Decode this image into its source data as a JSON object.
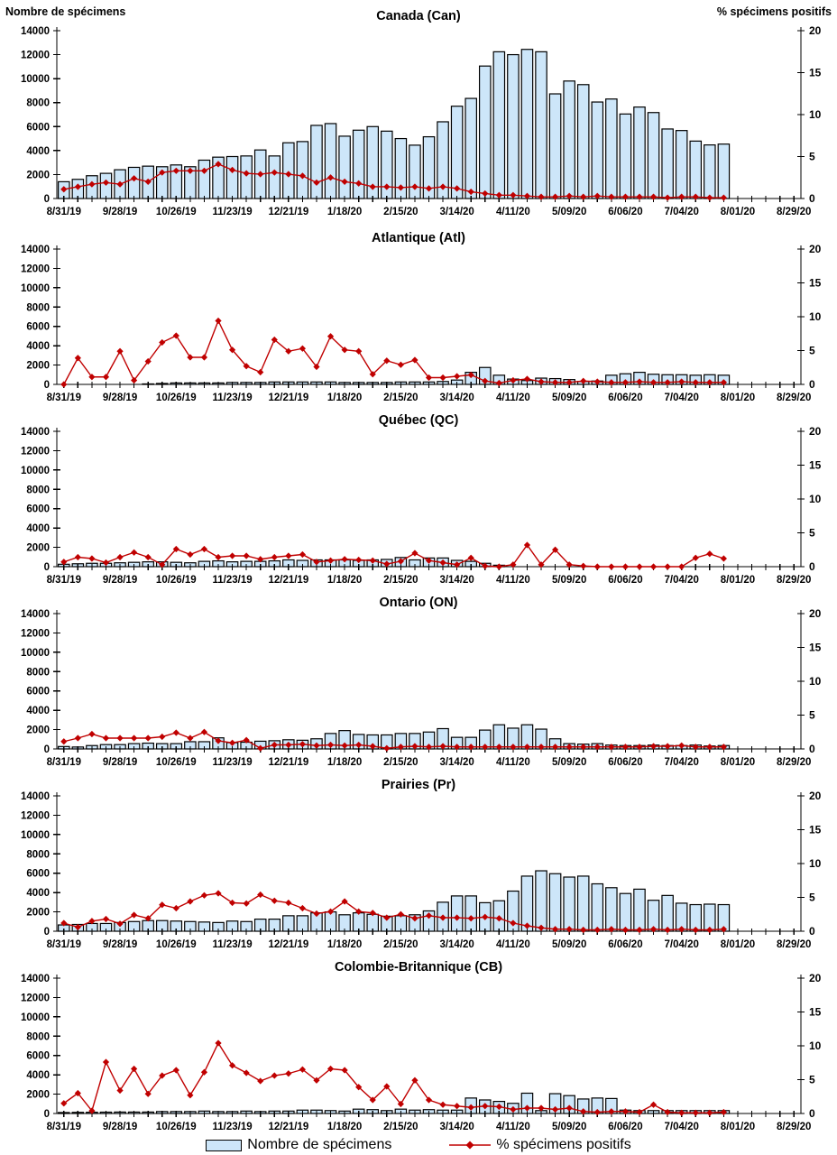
{
  "chart_data": {
    "type": "combo-bar-line",
    "x": {
      "dates": [
        "8/31/19",
        "9/07/19",
        "9/14/19",
        "9/21/19",
        "9/28/19",
        "10/05/19",
        "10/12/19",
        "10/19/19",
        "10/26/19",
        "11/02/19",
        "11/09/19",
        "11/16/19",
        "11/23/19",
        "11/30/19",
        "12/07/19",
        "12/14/19",
        "12/21/19",
        "12/28/19",
        "1/04/20",
        "1/11/20",
        "1/18/20",
        "1/25/20",
        "2/01/20",
        "2/08/20",
        "2/15/20",
        "2/22/20",
        "2/29/20",
        "3/07/20",
        "3/14/20",
        "3/21/20",
        "3/28/20",
        "4/04/20",
        "4/11/20",
        "4/18/20",
        "4/25/20",
        "5/02/20",
        "5/09/20",
        "5/16/20",
        "5/23/20",
        "5/30/20",
        "6/06/20",
        "6/13/20",
        "6/20/20",
        "6/27/20",
        "7/04/20",
        "7/11/20",
        "7/18/20",
        "7/25/20",
        "8/01/20",
        "8/08/20",
        "8/15/20",
        "8/22/20",
        "8/29/20"
      ],
      "label_every": 4,
      "weeks_with_data": 48
    },
    "left_axis": {
      "label": "Nombre de spécimens",
      "min": 0,
      "max": 14000,
      "step": 2000
    },
    "right_axis": {
      "label": "% spécimens positifs",
      "min": 0,
      "max": 20,
      "step": 5
    },
    "legend": [
      {
        "label": "Nombre de spécimens",
        "type": "bar"
      },
      {
        "label": "% spécimens positifs",
        "type": "line"
      }
    ],
    "colors": {
      "bar_fill": "#cde6f9",
      "bar_stroke": "#000000",
      "line": "#c00000",
      "axis": "#000000",
      "text": "#000000"
    },
    "charts": [
      {
        "title": "Canada (Can)",
        "bars": [
          1400,
          1600,
          1900,
          2100,
          2400,
          2600,
          2700,
          2650,
          2800,
          2650,
          3200,
          3450,
          3500,
          3550,
          4050,
          3550,
          4650,
          4750,
          6100,
          6250,
          5200,
          5700,
          6000,
          5620,
          5000,
          4450,
          5150,
          6400,
          7700,
          8350,
          11050,
          12240,
          12000,
          12440,
          12240,
          8730,
          9800,
          9500,
          8050,
          8300,
          7050,
          7630,
          7170,
          5800,
          5670,
          4790,
          4470,
          4540
        ],
        "line": [
          1.1,
          1.4,
          1.7,
          1.9,
          1.7,
          2.4,
          2.0,
          3.1,
          3.3,
          3.3,
          3.3,
          4.1,
          3.4,
          3.0,
          2.9,
          3.1,
          2.9,
          2.7,
          1.9,
          2.5,
          2.0,
          1.8,
          1.4,
          1.4,
          1.3,
          1.4,
          1.2,
          1.4,
          1.2,
          0.8,
          0.6,
          0.4,
          0.4,
          0.3,
          0.2,
          0.2,
          0.3,
          0.2,
          0.3,
          0.2,
          0.2,
          0.2,
          0.2,
          0.1,
          0.2,
          0.2,
          0.1,
          0.1
        ]
      },
      {
        "title": "Atlantique (Atl)",
        "bars": [
          0,
          0,
          0,
          0,
          0,
          0,
          50,
          100,
          150,
          150,
          150,
          150,
          200,
          200,
          200,
          250,
          250,
          250,
          250,
          250,
          200,
          200,
          200,
          200,
          250,
          250,
          250,
          300,
          450,
          1250,
          1750,
          950,
          550,
          400,
          650,
          600,
          500,
          300,
          350,
          950,
          1100,
          1250,
          1050,
          1000,
          1000,
          950,
          1000,
          950
        ],
        "line": [
          0,
          3.9,
          1.1,
          1.1,
          4.9,
          0.6,
          3.4,
          6.2,
          7.2,
          4.0,
          4.0,
          9.4,
          5.1,
          2.7,
          1.8,
          6.6,
          4.9,
          5.3,
          2.6,
          7.1,
          5.1,
          4.9,
          1.5,
          3.5,
          2.9,
          3.6,
          1.0,
          1.0,
          1.2,
          1.4,
          0.5,
          0.2,
          0.6,
          0.8,
          0.4,
          0.3,
          0.3,
          0.5,
          0.4,
          0.3,
          0.3,
          0.4,
          0.3,
          0.3,
          0.4,
          0.3,
          0.3,
          0.3
        ]
      },
      {
        "title": "Québec (QC)",
        "bars": [
          250,
          300,
          350,
          350,
          400,
          450,
          500,
          500,
          450,
          400,
          550,
          600,
          500,
          550,
          550,
          600,
          700,
          650,
          700,
          700,
          700,
          650,
          700,
          750,
          950,
          700,
          900,
          900,
          650,
          550,
          350,
          150,
          0,
          0,
          0,
          0,
          0,
          0,
          0,
          0,
          0,
          0,
          0,
          0,
          0,
          0,
          0,
          0
        ],
        "line": [
          0.7,
          1.4,
          1.2,
          0.6,
          1.4,
          2.1,
          1.4,
          0.3,
          2.6,
          1.8,
          2.6,
          1.4,
          1.6,
          1.6,
          1.1,
          1.4,
          1.6,
          1.8,
          0.7,
          0.9,
          1.1,
          1.0,
          0.9,
          0.4,
          0.8,
          2.0,
          0.9,
          0.6,
          0.3,
          1.3,
          0.1,
          0,
          0.3,
          3.2,
          0.3,
          2.5,
          0.3,
          0.1,
          0,
          0,
          0,
          0,
          0,
          0,
          0,
          1.3,
          1.9,
          1.2
        ]
      },
      {
        "title": "Ontario (ON)",
        "bars": [
          250,
          200,
          350,
          450,
          450,
          550,
          600,
          550,
          550,
          750,
          750,
          1150,
          650,
          700,
          800,
          850,
          950,
          900,
          1050,
          1600,
          1900,
          1500,
          1450,
          1450,
          1600,
          1600,
          1750,
          2100,
          1200,
          1200,
          1950,
          2500,
          2150,
          2500,
          2050,
          1050,
          550,
          500,
          550,
          400,
          350,
          350,
          400,
          350,
          350,
          400,
          300,
          350
        ],
        "line": [
          1.1,
          1.6,
          2.2,
          1.6,
          1.6,
          1.6,
          1.6,
          1.8,
          2.4,
          1.6,
          2.5,
          1.2,
          0.9,
          1.3,
          0.1,
          0.6,
          0.6,
          0.7,
          0.5,
          0.6,
          0.5,
          0.6,
          0.4,
          0.1,
          0.3,
          0.4,
          0.3,
          0.4,
          0.3,
          0.3,
          0.3,
          0.3,
          0.3,
          0.3,
          0.3,
          0.3,
          0.3,
          0.3,
          0.3,
          0.3,
          0.3,
          0.3,
          0.4,
          0.4,
          0.5,
          0.3,
          0.3,
          0.3
        ]
      },
      {
        "title": "Prairies (Pr)",
        "bars": [
          650,
          700,
          800,
          800,
          900,
          1000,
          1100,
          1100,
          1050,
          1000,
          950,
          900,
          1050,
          1000,
          1250,
          1250,
          1600,
          1600,
          1900,
          2000,
          1700,
          1900,
          1750,
          1550,
          1600,
          1700,
          2100,
          3000,
          3650,
          3650,
          2950,
          3150,
          4150,
          5700,
          6250,
          5950,
          5600,
          5700,
          4900,
          4500,
          3900,
          4350,
          3200,
          3700,
          2900,
          2750,
          2800,
          2750
        ],
        "line": [
          1.2,
          0.6,
          1.5,
          1.8,
          1.1,
          2.4,
          1.9,
          3.9,
          3.4,
          4.4,
          5.3,
          5.6,
          4.2,
          4.1,
          5.4,
          4.5,
          4.2,
          3.4,
          2.6,
          2.9,
          4.4,
          2.9,
          2.7,
          2.0,
          2.5,
          1.9,
          2.3,
          2.0,
          2.0,
          1.9,
          2.1,
          1.9,
          1.2,
          0.8,
          0.5,
          0.3,
          0.3,
          0.2,
          0.2,
          0.3,
          0.2,
          0.2,
          0.3,
          0.2,
          0.3,
          0.2,
          0.2,
          0.3
        ]
      },
      {
        "title": "Colombie-Britannique (CB)",
        "bars": [
          100,
          120,
          130,
          140,
          150,
          150,
          150,
          200,
          200,
          200,
          250,
          200,
          200,
          250,
          200,
          250,
          250,
          350,
          350,
          300,
          250,
          450,
          400,
          300,
          450,
          350,
          400,
          350,
          350,
          1600,
          1400,
          1250,
          1050,
          2100,
          300,
          2050,
          1850,
          1500,
          1600,
          1550,
          350,
          300,
          300,
          300,
          300,
          300,
          300,
          300
        ],
        "line": [
          1.5,
          3.0,
          0.4,
          7.6,
          3.4,
          6.6,
          2.9,
          5.6,
          6.4,
          2.7,
          6.1,
          10.4,
          7.1,
          6.0,
          4.8,
          5.6,
          5.9,
          6.5,
          4.9,
          6.6,
          6.4,
          3.9,
          2.0,
          4.0,
          1.4,
          4.9,
          2.0,
          1.3,
          1.1,
          0.9,
          1.1,
          1.0,
          0.6,
          0.8,
          0.8,
          0.6,
          0.8,
          0.3,
          0.2,
          0.3,
          0.3,
          0.2,
          1.3,
          0.2,
          0.1,
          0.1,
          0.1,
          0.2
        ]
      }
    ]
  }
}
